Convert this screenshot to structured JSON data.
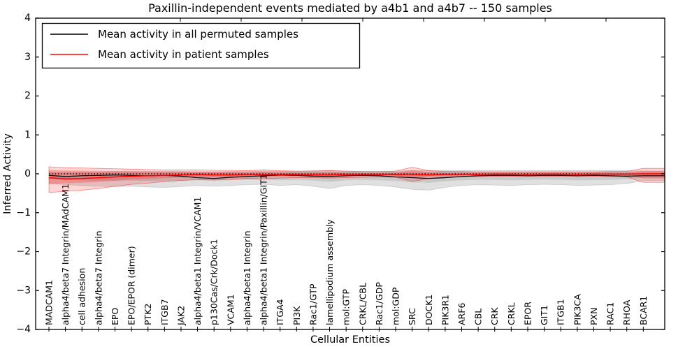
{
  "legend": {
    "items": [
      {
        "label": "Mean activity in all permuted samples",
        "color": "#000000"
      },
      {
        "label": "Mean activity in patient samples",
        "color": "#ff0000"
      }
    ]
  },
  "chart_data": {
    "type": "line",
    "title": "Paxillin-independent events mediated by a4b1 and a4b7 -- 150 samples",
    "xlabel": "Cellular Entities",
    "ylabel": "Inferred Activity",
    "ylim": [
      -4,
      4
    ],
    "yticks": [
      4,
      3,
      2,
      1,
      0,
      -1,
      -2,
      -3,
      -4
    ],
    "grid": false,
    "legend_position": "upper left",
    "zero_line": {
      "y": 0,
      "style": "dotted",
      "color": "#000000"
    },
    "categories": [
      "MADCAM1",
      "alpha4/beta7 Integrin/MAdCAM1",
      "cell adhesion",
      "alpha4/beta7 Integrin",
      "EPO",
      "EPO/EPOR (dimer)",
      "PTK2",
      "ITGB7",
      "JAK2",
      "alpha4/beta1 Integrin/VCAM1",
      "p130Cas/Crk/Dock1",
      "VCAM1",
      "alpha4/beta1 Integrin",
      "alpha4/beta1 Integrin/Paxillin/GIT1",
      "ITGA4",
      "PI3K",
      "Rac1/GTP",
      "lamellipodium assembly",
      "mol:GTP",
      "CRKL/CBL",
      "Rac1/GDP",
      "mol:GDP",
      "SRC",
      "DOCK1",
      "PIK3R1",
      "ARF6",
      "CBL",
      "CRK",
      "CRKL",
      "EPOR",
      "GIT1",
      "ITGB1",
      "PIK3CA",
      "PXN",
      "RAC1",
      "RHOA",
      "BCAR1"
    ],
    "series": [
      {
        "name": "Mean activity in all permuted samples",
        "color": "#000000",
        "band_color": "#000000",
        "values": [
          -0.04,
          -0.07,
          -0.05,
          -0.04,
          -0.03,
          -0.04,
          -0.05,
          -0.04,
          -0.06,
          -0.1,
          -0.12,
          -0.09,
          -0.07,
          -0.05,
          -0.03,
          -0.04,
          -0.06,
          -0.07,
          -0.05,
          -0.04,
          -0.05,
          -0.08,
          -0.1,
          -0.12,
          -0.1,
          -0.07,
          -0.05,
          -0.04,
          -0.04,
          -0.05,
          -0.04,
          -0.04,
          -0.05,
          -0.04,
          -0.05,
          -0.06,
          -0.05
        ],
        "band_top": [
          0.05,
          0.05,
          0.05,
          0.05,
          0.06,
          0.06,
          0.06,
          0.06,
          0.06,
          0.05,
          0.05,
          0.06,
          0.06,
          0.07,
          0.07,
          0.07,
          0.08,
          0.09,
          0.07,
          0.06,
          0.06,
          0.07,
          0.08,
          0.08,
          0.09,
          0.09,
          0.08,
          0.08,
          0.08,
          0.08,
          0.08,
          0.08,
          0.08,
          0.09,
          0.09,
          0.08,
          0.07
        ],
        "band_bottom": [
          -0.25,
          -0.28,
          -0.3,
          -0.32,
          -0.33,
          -0.32,
          -0.34,
          -0.35,
          -0.33,
          -0.3,
          -0.32,
          -0.3,
          -0.28,
          -0.27,
          -0.3,
          -0.28,
          -0.32,
          -0.38,
          -0.3,
          -0.28,
          -0.3,
          -0.34,
          -0.4,
          -0.42,
          -0.35,
          -0.3,
          -0.28,
          -0.29,
          -0.3,
          -0.28,
          -0.27,
          -0.28,
          -0.3,
          -0.29,
          -0.28,
          -0.25,
          -0.18
        ]
      },
      {
        "name": "Mean activity in patient samples",
        "color": "#ff0000",
        "band_color": "#ff0000",
        "values": [
          -0.1,
          -0.13,
          -0.12,
          -0.1,
          -0.08,
          -0.06,
          -0.05,
          -0.04,
          -0.03,
          -0.02,
          -0.03,
          -0.03,
          -0.02,
          -0.02,
          -0.02,
          -0.02,
          -0.03,
          -0.03,
          -0.02,
          -0.02,
          -0.02,
          -0.02,
          -0.02,
          -0.03,
          -0.02,
          -0.02,
          -0.02,
          -0.01,
          -0.01,
          -0.02,
          -0.01,
          -0.01,
          -0.02,
          -0.01,
          -0.01,
          -0.01,
          0.0
        ],
        "band_top": [
          0.18,
          0.16,
          0.15,
          0.14,
          0.13,
          0.12,
          0.11,
          0.1,
          0.1,
          0.1,
          0.09,
          0.09,
          0.08,
          0.1,
          0.08,
          0.07,
          0.07,
          0.08,
          0.07,
          0.06,
          0.06,
          0.07,
          0.17,
          0.08,
          0.06,
          0.06,
          0.05,
          0.05,
          0.05,
          0.05,
          0.05,
          0.05,
          0.05,
          0.05,
          0.06,
          0.06,
          0.14
        ],
        "band_bottom": [
          -0.48,
          -0.45,
          -0.42,
          -0.38,
          -0.32,
          -0.27,
          -0.24,
          -0.2,
          -0.17,
          -0.15,
          -0.16,
          -0.14,
          -0.12,
          -0.13,
          -0.11,
          -0.1,
          -0.1,
          -0.11,
          -0.1,
          -0.09,
          -0.08,
          -0.09,
          -0.2,
          -0.12,
          -0.08,
          -0.07,
          -0.07,
          -0.06,
          -0.06,
          -0.06,
          -0.06,
          -0.06,
          -0.06,
          -0.06,
          -0.07,
          -0.08,
          -0.22
        ]
      }
    ]
  }
}
